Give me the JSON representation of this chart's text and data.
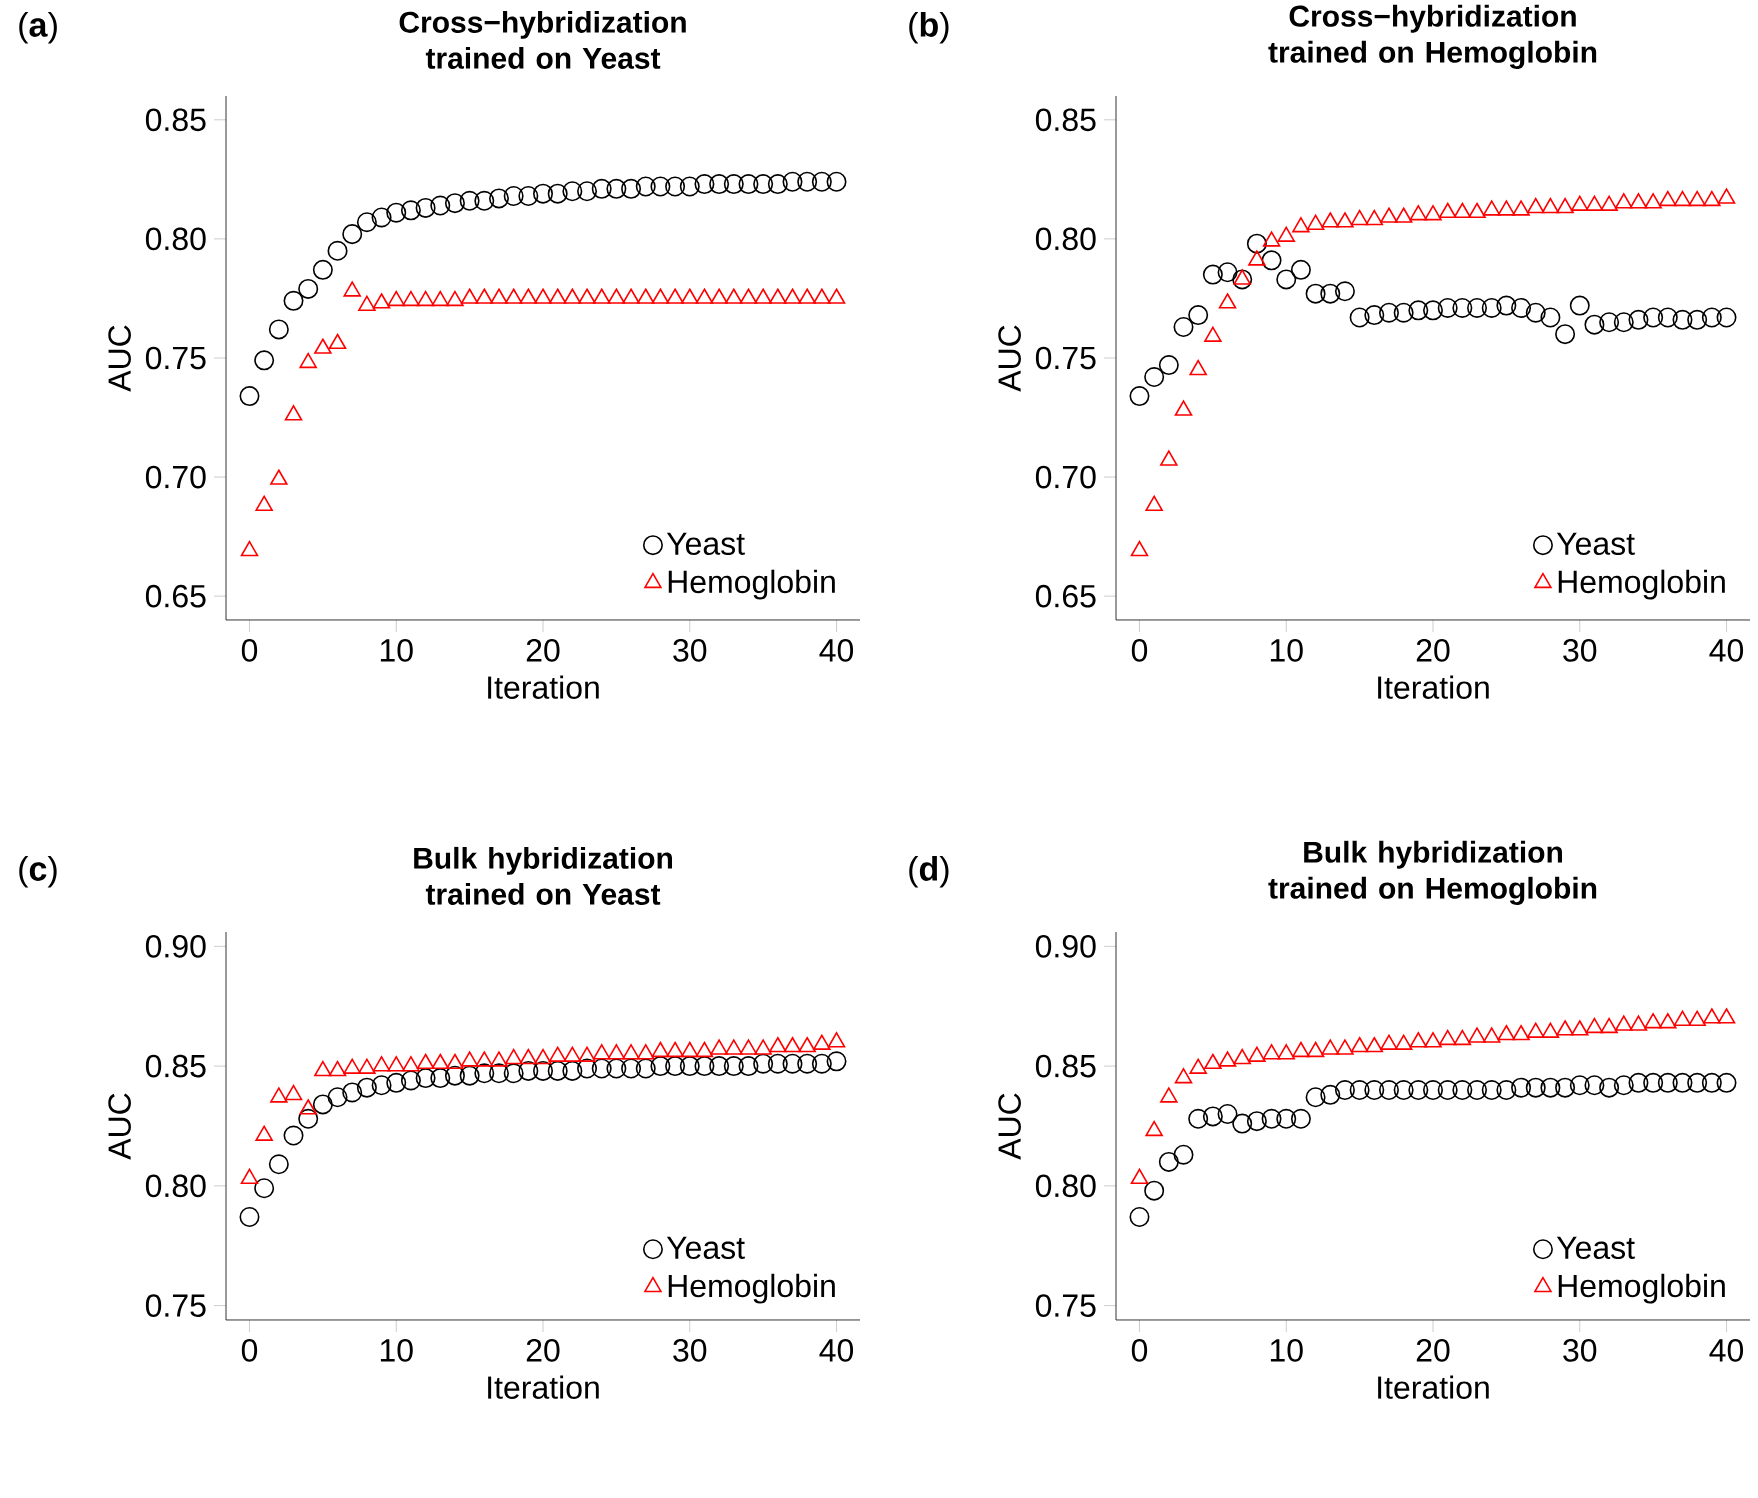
{
  "chart_data": [
    {
      "type": "scatter",
      "title": "Cross−hybridization trained on Yeast",
      "xlabel": "Iteration",
      "ylabel": "AUC",
      "annotations": [
        "(**a**)"
      ],
      "legend": "bottom right",
      "x": [
        0,
        1,
        2,
        3,
        4,
        5,
        6,
        7,
        8,
        9,
        10,
        11,
        12,
        13,
        14,
        15,
        16,
        17,
        18,
        19,
        20,
        21,
        22,
        23,
        24,
        25,
        26,
        27,
        28,
        29,
        30,
        31,
        32,
        33,
        34,
        35,
        36,
        37,
        38,
        39,
        40
      ],
      "xlim": [
        -1.6,
        41.6
      ],
      "ylim": [
        0.64,
        0.86
      ],
      "xticks": [
        0,
        10,
        20,
        30,
        40
      ],
      "yticks": [
        {
          "value": 0.65,
          "label": "0.65"
        },
        {
          "value": 0.7,
          "label": "0.70"
        },
        {
          "value": 0.75,
          "label": "0.75"
        },
        {
          "value": 0.8,
          "label": "0.80"
        },
        {
          "value": 0.85,
          "label": "0.85"
        }
      ],
      "series": [
        {
          "name": "Yeast",
          "color": "#000000",
          "marker": "circle",
          "values": [
            0.734,
            0.749,
            0.762,
            0.774,
            0.779,
            0.787,
            0.795,
            0.802,
            0.807,
            0.809,
            0.811,
            0.812,
            0.813,
            0.814,
            0.815,
            0.816,
            0.816,
            0.817,
            0.818,
            0.818,
            0.819,
            0.819,
            0.82,
            0.82,
            0.821,
            0.821,
            0.821,
            0.822,
            0.822,
            0.822,
            0.822,
            0.823,
            0.823,
            0.823,
            0.823,
            0.823,
            0.823,
            0.824,
            0.824,
            0.824,
            0.824
          ]
        },
        {
          "name": "Hemoglobin",
          "color": "#ff0000",
          "marker": "triangle",
          "values": [
            0.669,
            0.688,
            0.699,
            0.726,
            0.748,
            0.754,
            0.756,
            0.778,
            0.772,
            0.773,
            0.774,
            0.774,
            0.774,
            0.774,
            0.774,
            0.775,
            0.775,
            0.775,
            0.775,
            0.775,
            0.775,
            0.775,
            0.775,
            0.775,
            0.775,
            0.775,
            0.775,
            0.775,
            0.775,
            0.775,
            0.775,
            0.775,
            0.775,
            0.775,
            0.775,
            0.775,
            0.775,
            0.775,
            0.775,
            0.775,
            0.775
          ]
        }
      ]
    },
    {
      "type": "scatter",
      "title": "Cross−hybridization trained on Hemoglobin",
      "xlabel": "Iteration",
      "ylabel": "AUC",
      "annotations": [
        "(**b**)"
      ],
      "legend": "bottom right",
      "x": [
        0,
        1,
        2,
        3,
        4,
        5,
        6,
        7,
        8,
        9,
        10,
        11,
        12,
        13,
        14,
        15,
        16,
        17,
        18,
        19,
        20,
        21,
        22,
        23,
        24,
        25,
        26,
        27,
        28,
        29,
        30,
        31,
        32,
        33,
        34,
        35,
        36,
        37,
        38,
        39,
        40
      ],
      "xlim": [
        -1.6,
        41.6
      ],
      "ylim": [
        0.64,
        0.86
      ],
      "xticks": [
        0,
        10,
        20,
        30,
        40
      ],
      "yticks": [
        {
          "value": 0.65,
          "label": "0.65"
        },
        {
          "value": 0.7,
          "label": "0.70"
        },
        {
          "value": 0.75,
          "label": "0.75"
        },
        {
          "value": 0.8,
          "label": "0.80"
        },
        {
          "value": 0.85,
          "label": "0.85"
        }
      ],
      "series": [
        {
          "name": "Yeast",
          "color": "#000000",
          "marker": "circle",
          "values": [
            0.734,
            0.742,
            0.747,
            0.763,
            0.768,
            0.785,
            0.786,
            0.783,
            0.798,
            0.791,
            0.783,
            0.787,
            0.777,
            0.777,
            0.778,
            0.767,
            0.768,
            0.769,
            0.769,
            0.77,
            0.77,
            0.771,
            0.771,
            0.771,
            0.771,
            0.772,
            0.771,
            0.769,
            0.767,
            0.76,
            0.772,
            0.764,
            0.765,
            0.765,
            0.766,
            0.767,
            0.767,
            0.766,
            0.766,
            0.767,
            0.767
          ]
        },
        {
          "name": "Hemoglobin",
          "color": "#ff0000",
          "marker": "triangle",
          "values": [
            0.669,
            0.688,
            0.707,
            0.728,
            0.745,
            0.759,
            0.773,
            0.783,
            0.791,
            0.799,
            0.801,
            0.805,
            0.806,
            0.807,
            0.807,
            0.808,
            0.808,
            0.809,
            0.809,
            0.81,
            0.81,
            0.811,
            0.811,
            0.811,
            0.812,
            0.812,
            0.812,
            0.813,
            0.813,
            0.813,
            0.814,
            0.814,
            0.814,
            0.815,
            0.815,
            0.815,
            0.816,
            0.816,
            0.816,
            0.816,
            0.817
          ]
        }
      ]
    },
    {
      "type": "scatter",
      "title": "Bulk hybridization trained on Yeast",
      "xlabel": "Iteration",
      "ylabel": "AUC",
      "annotations": [
        "(**c**)"
      ],
      "legend": "bottom right",
      "x": [
        0,
        1,
        2,
        3,
        4,
        5,
        6,
        7,
        8,
        9,
        10,
        11,
        12,
        13,
        14,
        15,
        16,
        17,
        18,
        19,
        20,
        21,
        22,
        23,
        24,
        25,
        26,
        27,
        28,
        29,
        30,
        31,
        32,
        33,
        34,
        35,
        36,
        37,
        38,
        39,
        40
      ],
      "xlim": [
        -1.6,
        41.6
      ],
      "ylim": [
        0.744,
        0.906
      ],
      "xticks": [
        0,
        10,
        20,
        30,
        40
      ],
      "yticks": [
        {
          "value": 0.75,
          "label": "0.75"
        },
        {
          "value": 0.8,
          "label": "0.80"
        },
        {
          "value": 0.85,
          "label": "0.85"
        },
        {
          "value": 0.9,
          "label": "0.90"
        }
      ],
      "series": [
        {
          "name": "Yeast",
          "color": "#000000",
          "marker": "circle",
          "values": [
            0.787,
            0.799,
            0.809,
            0.821,
            0.828,
            0.834,
            0.837,
            0.839,
            0.841,
            0.842,
            0.843,
            0.844,
            0.845,
            0.845,
            0.846,
            0.846,
            0.847,
            0.847,
            0.847,
            0.848,
            0.848,
            0.848,
            0.848,
            0.849,
            0.849,
            0.849,
            0.849,
            0.849,
            0.85,
            0.85,
            0.85,
            0.85,
            0.85,
            0.85,
            0.85,
            0.851,
            0.851,
            0.851,
            0.851,
            0.851,
            0.852
          ]
        },
        {
          "name": "Hemoglobin",
          "color": "#ff0000",
          "marker": "triangle",
          "values": [
            0.803,
            0.821,
            0.837,
            0.838,
            0.832,
            0.848,
            0.848,
            0.849,
            0.849,
            0.85,
            0.85,
            0.85,
            0.851,
            0.851,
            0.851,
            0.852,
            0.852,
            0.852,
            0.853,
            0.853,
            0.853,
            0.854,
            0.854,
            0.854,
            0.855,
            0.855,
            0.855,
            0.855,
            0.856,
            0.856,
            0.856,
            0.856,
            0.857,
            0.857,
            0.857,
            0.857,
            0.858,
            0.858,
            0.858,
            0.859,
            0.86
          ]
        }
      ]
    },
    {
      "type": "scatter",
      "title": "Bulk hybridization trained on Hemoglobin",
      "xlabel": "Iteration",
      "ylabel": "AUC",
      "annotations": [
        "(**d**)"
      ],
      "legend": "bottom right",
      "x": [
        0,
        1,
        2,
        3,
        4,
        5,
        6,
        7,
        8,
        9,
        10,
        11,
        12,
        13,
        14,
        15,
        16,
        17,
        18,
        19,
        20,
        21,
        22,
        23,
        24,
        25,
        26,
        27,
        28,
        29,
        30,
        31,
        32,
        33,
        34,
        35,
        36,
        37,
        38,
        39,
        40
      ],
      "xlim": [
        -1.6,
        41.6
      ],
      "ylim": [
        0.744,
        0.906
      ],
      "xticks": [
        0,
        10,
        20,
        30,
        40
      ],
      "yticks": [
        {
          "value": 0.75,
          "label": "0.75"
        },
        {
          "value": 0.8,
          "label": "0.80"
        },
        {
          "value": 0.85,
          "label": "0.85"
        },
        {
          "value": 0.9,
          "label": "0.90"
        }
      ],
      "series": [
        {
          "name": "Yeast",
          "color": "#000000",
          "marker": "circle",
          "values": [
            0.787,
            0.798,
            0.81,
            0.813,
            0.828,
            0.829,
            0.83,
            0.826,
            0.827,
            0.828,
            0.828,
            0.828,
            0.837,
            0.838,
            0.84,
            0.84,
            0.84,
            0.84,
            0.84,
            0.84,
            0.84,
            0.84,
            0.84,
            0.84,
            0.84,
            0.84,
            0.841,
            0.841,
            0.841,
            0.841,
            0.842,
            0.842,
            0.841,
            0.842,
            0.843,
            0.843,
            0.843,
            0.843,
            0.843,
            0.843,
            0.843
          ]
        },
        {
          "name": "Hemoglobin",
          "color": "#ff0000",
          "marker": "triangle",
          "values": [
            0.803,
            0.823,
            0.837,
            0.845,
            0.849,
            0.851,
            0.852,
            0.853,
            0.854,
            0.855,
            0.855,
            0.856,
            0.856,
            0.857,
            0.857,
            0.858,
            0.858,
            0.859,
            0.859,
            0.86,
            0.86,
            0.861,
            0.861,
            0.862,
            0.862,
            0.863,
            0.863,
            0.864,
            0.864,
            0.865,
            0.865,
            0.866,
            0.866,
            0.867,
            0.867,
            0.868,
            0.868,
            0.869,
            0.869,
            0.87,
            0.87
          ]
        }
      ]
    }
  ]
}
